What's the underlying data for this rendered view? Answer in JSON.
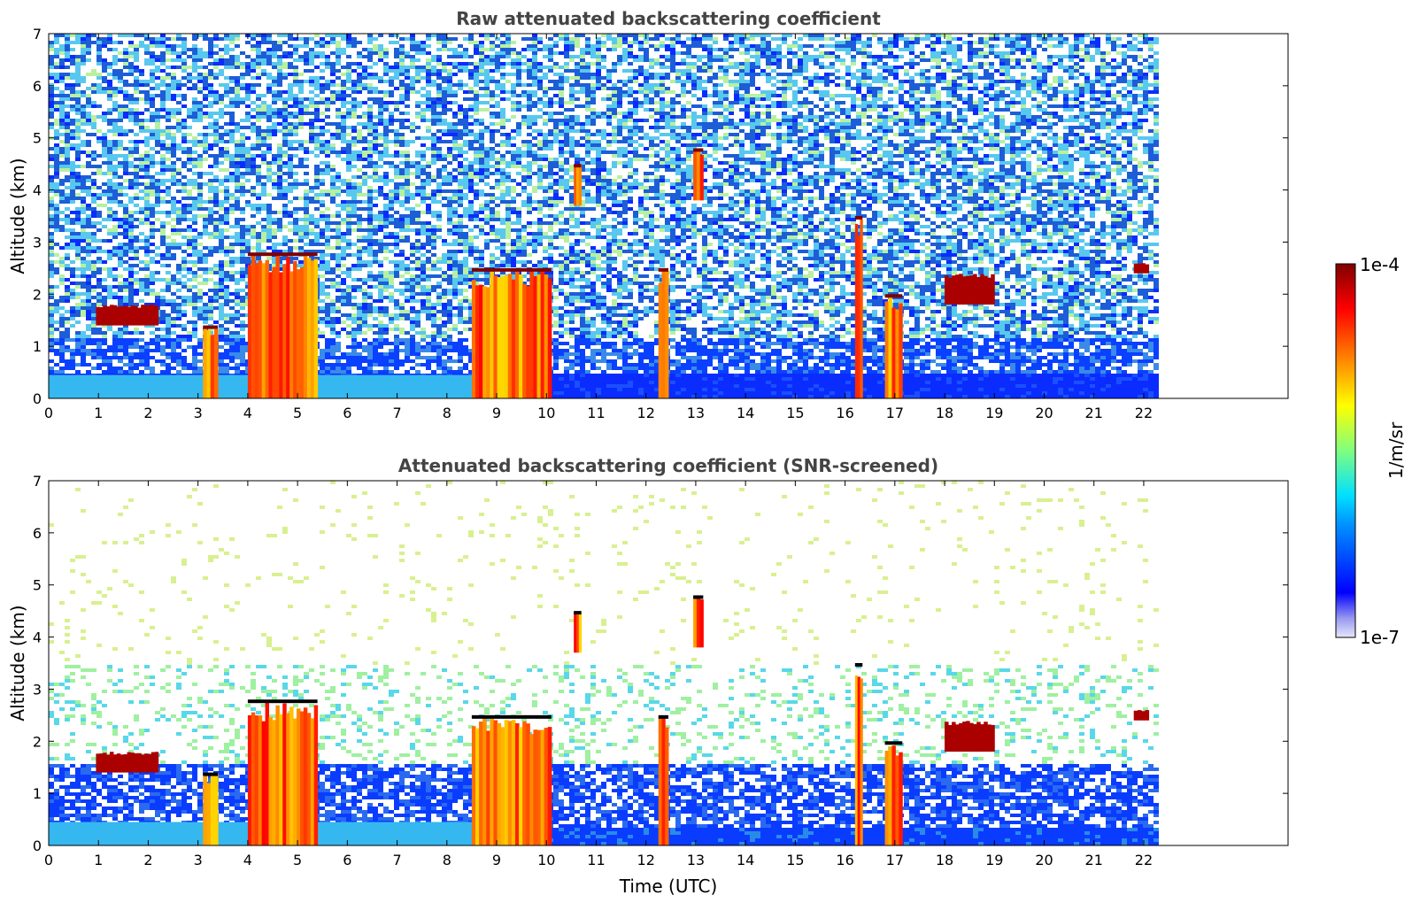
{
  "chart_data": [
    {
      "type": "heatmap",
      "title": "Raw attenuated backscattering coefficient",
      "xlabel": "",
      "ylabel": "Altitude (km)",
      "xlim": [
        0,
        24.9
      ],
      "ylim": [
        0,
        7
      ],
      "x_ticks": [
        "0",
        "1",
        "2",
        "3",
        "4",
        "5",
        "6",
        "7",
        "8",
        "9",
        "10",
        "11",
        "12",
        "13",
        "14",
        "15",
        "16",
        "17",
        "18",
        "19",
        "20",
        "21",
        "22"
      ],
      "y_ticks": [
        "0",
        "1",
        "2",
        "3",
        "4",
        "5",
        "6",
        "7"
      ],
      "data_extent_time": [
        0,
        22.3
      ],
      "features": [
        {
          "kind": "cloud",
          "t": [
            8.5,
            10.1
          ],
          "alt": [
            0.0,
            2.5
          ]
        },
        {
          "kind": "cloud",
          "t": [
            4.0,
            5.4
          ],
          "alt": [
            0.0,
            2.8
          ]
        },
        {
          "kind": "cloud",
          "t": [
            3.1,
            3.4
          ],
          "alt": [
            0.0,
            1.4
          ]
        },
        {
          "kind": "cloud",
          "t": [
            12.25,
            12.45
          ],
          "alt": [
            0.0,
            2.5
          ]
        },
        {
          "kind": "cloud",
          "t": [
            16.2,
            16.35
          ],
          "alt": [
            0.0,
            3.5
          ]
        },
        {
          "kind": "cloud",
          "t": [
            16.8,
            17.15
          ],
          "alt": [
            0.0,
            2.0
          ]
        },
        {
          "kind": "cloud_layer",
          "t": [
            0.95,
            2.2
          ],
          "alt": [
            1.4,
            1.8
          ]
        },
        {
          "kind": "cloud_layer",
          "t": [
            18.0,
            19.0
          ],
          "alt": [
            1.8,
            2.4
          ]
        },
        {
          "kind": "cloud",
          "t": [
            12.95,
            13.15
          ],
          "alt": [
            3.8,
            4.8
          ]
        },
        {
          "kind": "cloud",
          "t": [
            10.55,
            10.7
          ],
          "alt": [
            3.7,
            4.5
          ]
        },
        {
          "kind": "cloud_layer",
          "t": [
            21.8,
            22.1
          ],
          "alt": [
            2.4,
            2.6
          ]
        }
      ]
    },
    {
      "type": "heatmap",
      "title": "Attenuated backscattering coefficient (SNR-screened)",
      "xlabel": "Time (UTC)",
      "ylabel": "Altitude (km)",
      "xlim": [
        0,
        24.9
      ],
      "ylim": [
        0,
        7
      ],
      "x_ticks": [
        "0",
        "1",
        "2",
        "3",
        "4",
        "5",
        "6",
        "7",
        "8",
        "9",
        "10",
        "11",
        "12",
        "13",
        "14",
        "15",
        "16",
        "17",
        "18",
        "19",
        "20",
        "21",
        "22"
      ],
      "y_ticks": [
        "0",
        "1",
        "2",
        "3",
        "4",
        "5",
        "6",
        "7"
      ],
      "data_extent_time": [
        0,
        22.3
      ],
      "features": [
        {
          "kind": "cloud",
          "t": [
            8.5,
            10.1
          ],
          "alt": [
            0.0,
            2.5
          ]
        },
        {
          "kind": "cloud",
          "t": [
            4.0,
            5.4
          ],
          "alt": [
            0.0,
            2.8
          ]
        },
        {
          "kind": "cloud",
          "t": [
            3.1,
            3.4
          ],
          "alt": [
            0.0,
            1.4
          ]
        },
        {
          "kind": "cloud",
          "t": [
            12.25,
            12.45
          ],
          "alt": [
            0.0,
            2.5
          ]
        },
        {
          "kind": "cloud",
          "t": [
            16.2,
            16.35
          ],
          "alt": [
            0.0,
            3.5
          ]
        },
        {
          "kind": "cloud",
          "t": [
            16.8,
            17.15
          ],
          "alt": [
            0.0,
            2.0
          ]
        },
        {
          "kind": "cloud_layer",
          "t": [
            0.95,
            2.2
          ],
          "alt": [
            1.4,
            1.8
          ]
        },
        {
          "kind": "cloud_layer",
          "t": [
            18.0,
            19.0
          ],
          "alt": [
            1.8,
            2.4
          ]
        },
        {
          "kind": "cloud",
          "t": [
            12.95,
            13.15
          ],
          "alt": [
            3.8,
            4.8
          ]
        },
        {
          "kind": "cloud",
          "t": [
            10.55,
            10.7
          ],
          "alt": [
            3.7,
            4.5
          ]
        },
        {
          "kind": "cloud_layer",
          "t": [
            21.8,
            22.1
          ],
          "alt": [
            2.4,
            2.6
          ]
        }
      ]
    }
  ],
  "colorbar": {
    "label": "1/m/sr",
    "max_label": "1e-4",
    "min_label": "1e-7",
    "scale": "log",
    "colormap": "jet",
    "colors": [
      "#e6e6fa",
      "#0000ff",
      "#00bfff",
      "#00ffff",
      "#7fff7f",
      "#ffff00",
      "#ff7f00",
      "#ff0000",
      "#7f0000"
    ]
  }
}
